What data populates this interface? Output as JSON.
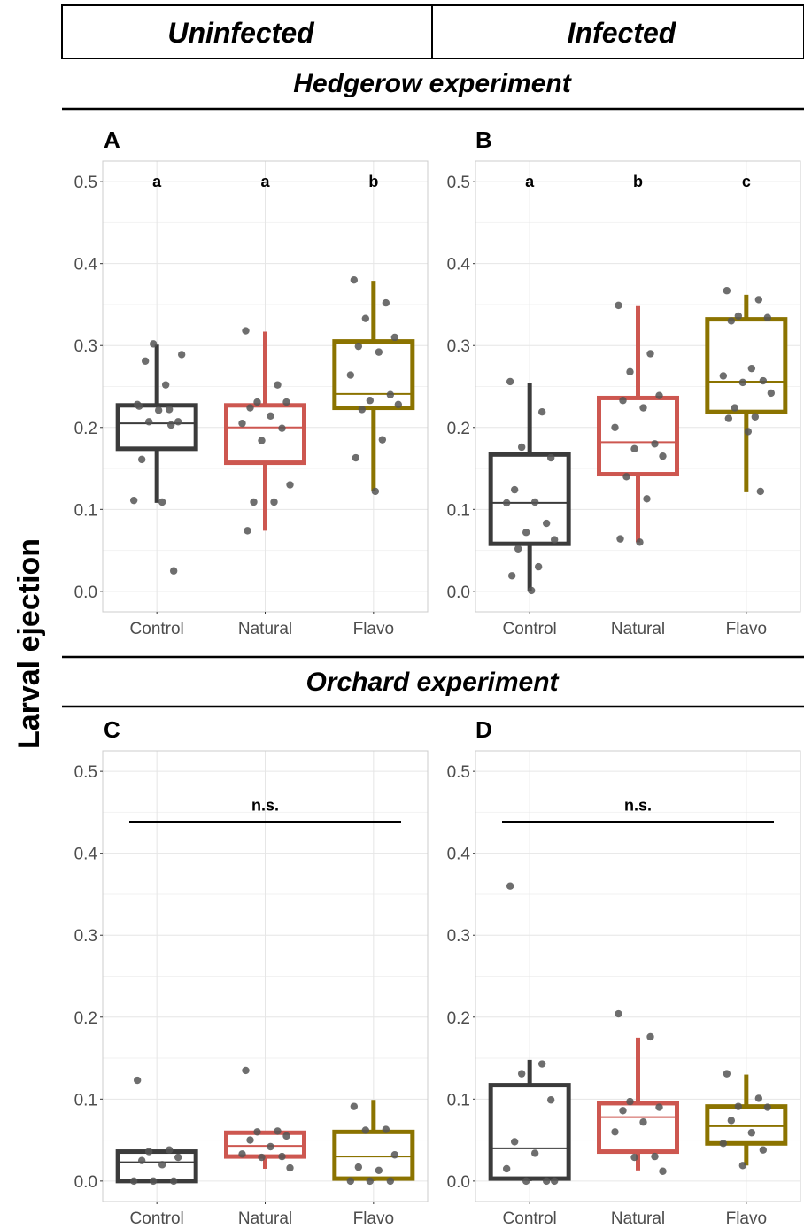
{
  "header": {
    "left": "Uninfected",
    "right": "Infected"
  },
  "sections": {
    "top": "Hedgerow experiment",
    "bottom": "Orchard experiment"
  },
  "ylabel": "Larval ejection",
  "colors": {
    "Control": "#3b3b3b",
    "Natural": "#cd5750",
    "Flavo": "#8b7300",
    "point": "#555555",
    "grid": "#e6e6e6",
    "frame": "#cccccc"
  },
  "chart_data": [
    {
      "type": "box",
      "panel": "A",
      "categories": [
        "Control",
        "Natural",
        "Flavo"
      ],
      "ylim": [
        -0.025,
        0.525
      ],
      "yticks": [
        "0.0",
        "0.1",
        "0.2",
        "0.3",
        "0.4",
        "0.5"
      ],
      "significance": [
        "a",
        "a",
        "b"
      ],
      "boxes": [
        {
          "min": 0.108,
          "q1": 0.174,
          "median": 0.205,
          "q3": 0.227,
          "max": 0.301
        },
        {
          "min": 0.074,
          "q1": 0.157,
          "median": 0.2,
          "q3": 0.227,
          "max": 0.317
        },
        {
          "min": 0.122,
          "q1": 0.224,
          "median": 0.241,
          "q3": 0.305,
          "max": 0.379
        }
      ],
      "points": [
        [
          0.228,
          0.222,
          0.207,
          0.207,
          0.161,
          0.109,
          0.111,
          0.025,
          0.302,
          0.289,
          0.281,
          0.252,
          0.226,
          0.221,
          0.203
        ],
        [
          0.318,
          0.252,
          0.231,
          0.231,
          0.224,
          0.214,
          0.205,
          0.199,
          0.184,
          0.13,
          0.109,
          0.109,
          0.074
        ],
        [
          0.38,
          0.352,
          0.333,
          0.31,
          0.299,
          0.292,
          0.264,
          0.24,
          0.233,
          0.228,
          0.222,
          0.185,
          0.163,
          0.122
        ]
      ]
    },
    {
      "type": "box",
      "panel": "B",
      "categories": [
        "Control",
        "Natural",
        "Flavo"
      ],
      "ylim": [
        -0.025,
        0.525
      ],
      "yticks": [
        "0.0",
        "0.1",
        "0.2",
        "0.3",
        "0.4",
        "0.5"
      ],
      "significance": [
        "a",
        "b",
        "c"
      ],
      "boxes": [
        {
          "min": 0.001,
          "q1": 0.058,
          "median": 0.108,
          "q3": 0.167,
          "max": 0.254
        },
        {
          "min": 0.06,
          "q1": 0.143,
          "median": 0.182,
          "q3": 0.236,
          "max": 0.348
        },
        {
          "min": 0.121,
          "q1": 0.219,
          "median": 0.256,
          "q3": 0.332,
          "max": 0.362
        }
      ],
      "points": [
        [
          0.256,
          0.219,
          0.176,
          0.163,
          0.124,
          0.109,
          0.108,
          0.083,
          0.072,
          0.063,
          0.052,
          0.03,
          0.019,
          0.001
        ],
        [
          0.349,
          0.29,
          0.268,
          0.239,
          0.233,
          0.224,
          0.2,
          0.18,
          0.174,
          0.165,
          0.14,
          0.113,
          0.064,
          0.06
        ],
        [
          0.367,
          0.356,
          0.336,
          0.334,
          0.33,
          0.272,
          0.263,
          0.257,
          0.255,
          0.242,
          0.224,
          0.213,
          0.211,
          0.195,
          0.122
        ]
      ]
    },
    {
      "type": "box",
      "panel": "C",
      "categories": [
        "Control",
        "Natural",
        "Flavo"
      ],
      "ylim": [
        -0.025,
        0.525
      ],
      "yticks": [
        "0.0",
        "0.1",
        "0.2",
        "0.3",
        "0.4",
        "0.5"
      ],
      "significance_bar": {
        "y": 0.438,
        "label": "n.s."
      },
      "boxes": [
        {
          "min": 0.0,
          "q1": 0.0,
          "median": 0.023,
          "q3": 0.036,
          "max": 0.036
        },
        {
          "min": 0.015,
          "q1": 0.03,
          "median": 0.043,
          "q3": 0.059,
          "max": 0.059
        },
        {
          "min": 0.0,
          "q1": 0.003,
          "median": 0.03,
          "q3": 0.06,
          "max": 0.099
        }
      ],
      "points": [
        [
          0.123,
          0.038,
          0.036,
          0.029,
          0.025,
          0.02,
          0.0,
          0.0,
          0.0
        ],
        [
          0.135,
          0.061,
          0.06,
          0.055,
          0.05,
          0.042,
          0.033,
          0.03,
          0.029,
          0.016
        ],
        [
          0.091,
          0.063,
          0.062,
          0.032,
          0.017,
          0.013,
          0.0,
          0.0,
          0.0
        ]
      ]
    },
    {
      "type": "box",
      "panel": "D",
      "categories": [
        "Control",
        "Natural",
        "Flavo"
      ],
      "ylim": [
        -0.025,
        0.525
      ],
      "yticks": [
        "0.0",
        "0.1",
        "0.2",
        "0.3",
        "0.4",
        "0.5"
      ],
      "significance_bar": {
        "y": 0.438,
        "label": "n.s."
      },
      "boxes": [
        {
          "min": 0.0,
          "q1": 0.003,
          "median": 0.04,
          "q3": 0.117,
          "max": 0.148
        },
        {
          "min": 0.013,
          "q1": 0.036,
          "median": 0.078,
          "q3": 0.095,
          "max": 0.175
        },
        {
          "min": 0.019,
          "q1": 0.046,
          "median": 0.067,
          "q3": 0.091,
          "max": 0.13
        }
      ],
      "points": [
        [
          0.36,
          0.143,
          0.131,
          0.099,
          0.048,
          0.034,
          0.015,
          0.0,
          0.0,
          0.0
        ],
        [
          0.204,
          0.176,
          0.097,
          0.09,
          0.086,
          0.072,
          0.06,
          0.03,
          0.029,
          0.012
        ],
        [
          0.131,
          0.101,
          0.091,
          0.09,
          0.074,
          0.059,
          0.046,
          0.038,
          0.019
        ]
      ]
    }
  ]
}
